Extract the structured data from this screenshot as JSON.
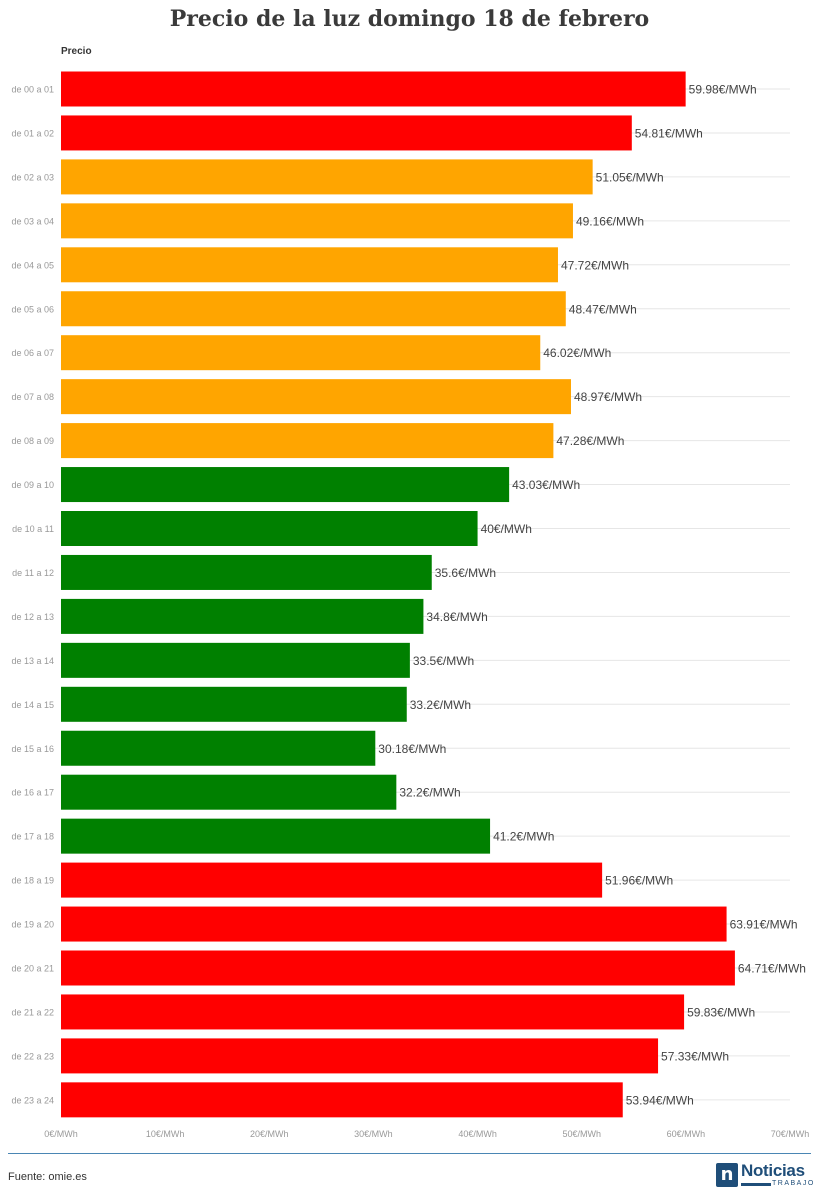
{
  "page": {
    "title": "Precio de la luz domingo 18 de febrero",
    "source": "Fuente: omie.es",
    "logo": {
      "name": "Noticias",
      "sub": "TRABAJO",
      "mark": "n"
    }
  },
  "colors": {
    "red": "#ff0000",
    "orange": "#ffa500",
    "green": "#008000",
    "grid": "#e6e6e6",
    "tick_label": "#999999",
    "value_label": "#444444",
    "footer_rule": "#4a86b4",
    "logo": "#1f4e79"
  },
  "chart_data": {
    "type": "bar",
    "orientation": "horizontal",
    "title": "Precio de la luz domingo 18 de febrero",
    "series_label": "Precio",
    "value_suffix": "€/MWh",
    "xlim": [
      0,
      70
    ],
    "x_ticks": [
      0,
      10,
      20,
      30,
      40,
      50,
      60,
      70
    ],
    "x_tick_labels": [
      "0€/MWh",
      "10€/MWh",
      "20€/MWh",
      "30€/MWh",
      "40€/MWh",
      "50€/MWh",
      "60€/MWh",
      "70€/MWh"
    ],
    "grid": true,
    "categories": [
      "de 00 a 01",
      "de 01 a 02",
      "de 02 a 03",
      "de 03 a 04",
      "de 04 a 05",
      "de 05 a 06",
      "de 06 a 07",
      "de 07 a 08",
      "de 08 a 09",
      "de 09 a 10",
      "de 10 a 11",
      "de 11 a 12",
      "de 12 a 13",
      "de 13 a 14",
      "de 14 a 15",
      "de 15 a 16",
      "de 16 a 17",
      "de 17 a 18",
      "de 18 a 19",
      "de 19 a 20",
      "de 20 a 21",
      "de 21 a 22",
      "de 22 a 23",
      "de 23 a 24"
    ],
    "values": [
      59.98,
      54.81,
      51.05,
      49.16,
      47.72,
      48.47,
      46.02,
      48.97,
      47.28,
      43.03,
      40,
      35.6,
      34.8,
      33.5,
      33.2,
      30.18,
      32.2,
      41.2,
      51.96,
      63.91,
      64.71,
      59.83,
      57.33,
      53.94
    ],
    "value_labels": [
      "59.98€/MWh",
      "54.81€/MWh",
      "51.05€/MWh",
      "49.16€/MWh",
      "47.72€/MWh",
      "48.47€/MWh",
      "46.02€/MWh",
      "48.97€/MWh",
      "47.28€/MWh",
      "43.03€/MWh",
      "40€/MWh",
      "35.6€/MWh",
      "34.8€/MWh",
      "33.5€/MWh",
      "33.2€/MWh",
      "30.18€/MWh",
      "32.2€/MWh",
      "41.2€/MWh",
      "51.96€/MWh",
      "63.91€/MWh",
      "64.71€/MWh",
      "59.83€/MWh",
      "57.33€/MWh",
      "53.94€/MWh"
    ],
    "bar_colors": [
      "red",
      "red",
      "orange",
      "orange",
      "orange",
      "orange",
      "orange",
      "orange",
      "orange",
      "green",
      "green",
      "green",
      "green",
      "green",
      "green",
      "green",
      "green",
      "green",
      "red",
      "red",
      "red",
      "red",
      "red",
      "red"
    ]
  }
}
